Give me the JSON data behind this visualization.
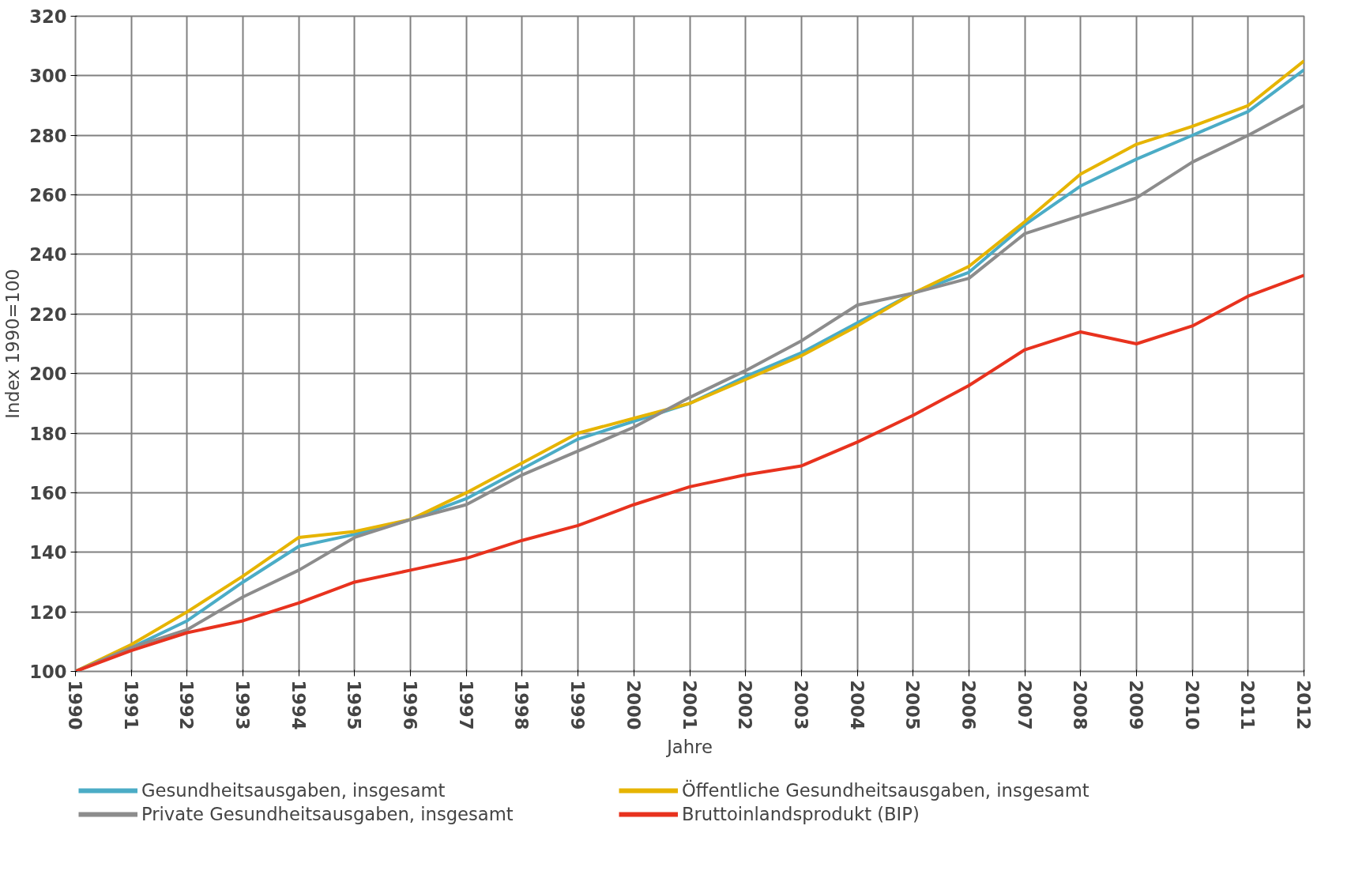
{
  "chart_data": {
    "type": "line",
    "xlabel": "Jahre",
    "ylabel": "Index 1990=100",
    "x": [
      1990,
      1991,
      1992,
      1993,
      1994,
      1995,
      1996,
      1997,
      1998,
      1999,
      2000,
      2001,
      2002,
      2003,
      2004,
      2005,
      2006,
      2007,
      2008,
      2009,
      2010,
      2011,
      2012
    ],
    "xlim": [
      1990,
      2012
    ],
    "xticks": [
      1990,
      1991,
      1992,
      1993,
      1994,
      1995,
      1996,
      1997,
      1998,
      1999,
      2000,
      2001,
      2002,
      2003,
      2004,
      2005,
      2006,
      2007,
      2008,
      2009,
      2010,
      2011,
      2012
    ],
    "ylim": [
      100,
      320
    ],
    "yticks": [
      100,
      120,
      140,
      160,
      180,
      200,
      220,
      240,
      260,
      280,
      300,
      320
    ],
    "grid": true,
    "legend": "bottom",
    "marker": "none",
    "line_style": "solid",
    "series": [
      {
        "name": "Gesundheitsausgaben, insgesamt",
        "color": "#4bacc6",
        "values": [
          100,
          108,
          117,
          130,
          142,
          146,
          151,
          158,
          168,
          178,
          184,
          190,
          199,
          207,
          217,
          227,
          234,
          250,
          263,
          272,
          280,
          288,
          302
        ]
      },
      {
        "name": "Öffentliche Gesundheitsausgaben, insgesamt",
        "color": "#e6b400",
        "values": [
          100,
          109,
          120,
          132,
          145,
          147,
          151,
          160,
          170,
          180,
          185,
          190,
          198,
          206,
          216,
          227,
          236,
          251,
          267,
          277,
          283,
          290,
          305
        ]
      },
      {
        "name": "Private Gesundheitsausgaben, insgesamt",
        "color": "#8c8c8c",
        "values": [
          100,
          108,
          114,
          125,
          134,
          145,
          151,
          156,
          166,
          174,
          182,
          192,
          201,
          211,
          223,
          227,
          232,
          247,
          253,
          259,
          271,
          280,
          290
        ]
      },
      {
        "name": "Bruttoinlandsprodukt (BIP)",
        "color": "#e8321e",
        "values": [
          100,
          107,
          113,
          117,
          123,
          130,
          134,
          138,
          144,
          149,
          156,
          162,
          166,
          169,
          177,
          186,
          196,
          208,
          214,
          210,
          216,
          226,
          233
        ]
      }
    ]
  }
}
